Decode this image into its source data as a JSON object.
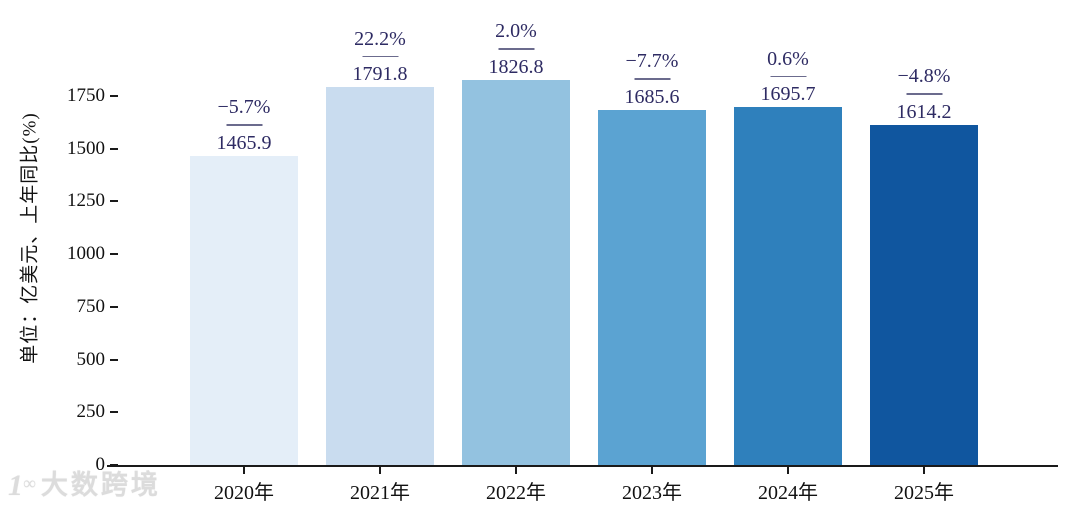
{
  "chart_data": {
    "type": "bar",
    "title": "",
    "xlabel": "",
    "ylabel": "单位：亿美元、上年同比(%)",
    "categories": [
      "2020年",
      "2021年",
      "2022年",
      "2023年",
      "2024年",
      "2025年"
    ],
    "values": [
      1465.9,
      1791.8,
      1826.8,
      1685.6,
      1695.7,
      1614.2
    ],
    "value_labels": [
      "1465.9",
      "1791.8",
      "1826.8",
      "1685.6",
      "1695.7",
      "1614.2"
    ],
    "growth_labels": [
      "−5.7%",
      "22.2%",
      "2.0%",
      "−7.7%",
      "0.6%",
      "−4.8%"
    ],
    "yticks": [
      0,
      250,
      500,
      750,
      1000,
      1250,
      1500,
      1750
    ],
    "ylim": [
      0,
      2205
    ],
    "grid": false,
    "legend": "none",
    "bar_colors": [
      "#e4eef8",
      "#c9dcef",
      "#93c2e0",
      "#5ba3d2",
      "#2f80bc",
      "#10569f"
    ],
    "annotation_color": "#2e2b63",
    "divider_color": "#6b6b8d",
    "axis_color": "#1a1a1a"
  },
  "watermark": {
    "logo": "1∞",
    "text": "大数跨境"
  }
}
